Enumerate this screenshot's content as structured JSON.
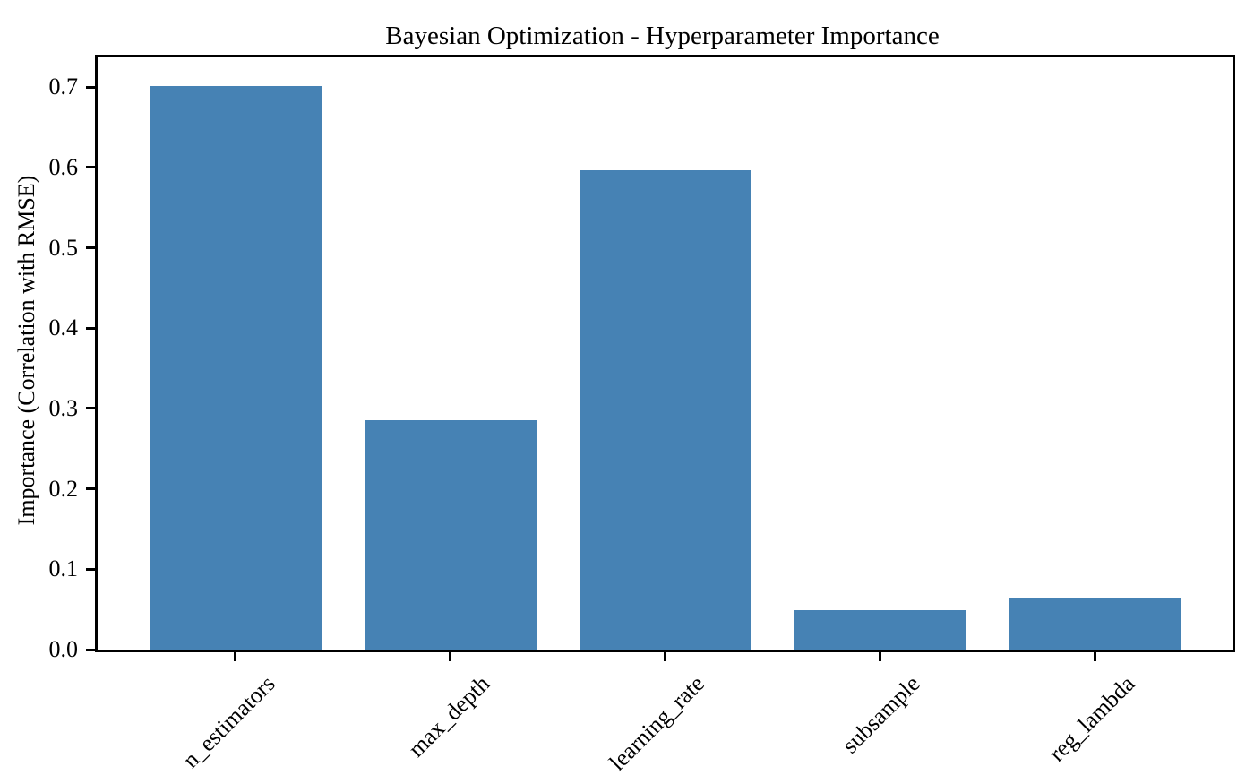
{
  "chart_data": {
    "type": "bar",
    "title": "Bayesian Optimization - Hyperparameter Importance",
    "xlabel": "",
    "ylabel": "Importance (Correlation with RMSE)",
    "categories": [
      "n_estimators",
      "max_depth",
      "learning_rate",
      "subsample",
      "reg_lambda"
    ],
    "values": [
      0.701,
      0.285,
      0.597,
      0.049,
      0.065
    ],
    "yticks": [
      0.0,
      0.1,
      0.2,
      0.3,
      0.4,
      0.5,
      0.6,
      0.7
    ],
    "ylim": [
      0,
      0.737
    ],
    "bar_color": "#4682B4",
    "axis_color": "#000000",
    "text_color": "#000000",
    "background_color": "#FFFFFF",
    "grid": false,
    "legend": null,
    "x_tick_label_rotation_deg": 45
  }
}
